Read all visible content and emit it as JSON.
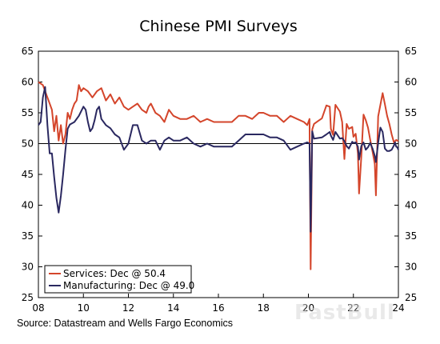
{
  "chart_data": {
    "type": "line",
    "title": "Chinese PMI Surveys",
    "xlabel": "",
    "ylabel": "",
    "xlim": [
      2008,
      2024
    ],
    "ylim": [
      25,
      65
    ],
    "x_ticks": [
      "08",
      "10",
      "12",
      "14",
      "16",
      "18",
      "20",
      "22",
      "24"
    ],
    "y_ticks": [
      25,
      30,
      35,
      40,
      45,
      50,
      55,
      60,
      65
    ],
    "reference_line": 50,
    "legend_position": "bottom-left",
    "grid": false,
    "series": [
      {
        "name": "Services: Dec @ 50.4",
        "color": "#d4452b",
        "points": [
          [
            2008.0,
            60.0
          ],
          [
            2008.2,
            59.5
          ],
          [
            2008.4,
            57.5
          ],
          [
            2008.6,
            55.5
          ],
          [
            2008.7,
            52.0
          ],
          [
            2008.8,
            54.5
          ],
          [
            2008.9,
            50.5
          ],
          [
            2009.0,
            53.0
          ],
          [
            2009.1,
            50.0
          ],
          [
            2009.2,
            51.5
          ],
          [
            2009.3,
            55.0
          ],
          [
            2009.4,
            54.0
          ],
          [
            2009.5,
            55.5
          ],
          [
            2009.6,
            56.5
          ],
          [
            2009.7,
            57.0
          ],
          [
            2009.8,
            59.5
          ],
          [
            2009.9,
            58.5
          ],
          [
            2010.0,
            59.0
          ],
          [
            2010.2,
            58.5
          ],
          [
            2010.4,
            57.5
          ],
          [
            2010.6,
            58.5
          ],
          [
            2010.8,
            59.0
          ],
          [
            2011.0,
            57.0
          ],
          [
            2011.2,
            58.0
          ],
          [
            2011.4,
            56.5
          ],
          [
            2011.6,
            57.5
          ],
          [
            2011.8,
            56.0
          ],
          [
            2012.0,
            55.5
          ],
          [
            2012.2,
            56.0
          ],
          [
            2012.4,
            56.5
          ],
          [
            2012.6,
            55.5
          ],
          [
            2012.8,
            55.0
          ],
          [
            2012.9,
            56.0
          ],
          [
            2013.0,
            56.5
          ],
          [
            2013.2,
            55.0
          ],
          [
            2013.4,
            54.5
          ],
          [
            2013.6,
            53.5
          ],
          [
            2013.8,
            55.5
          ],
          [
            2014.0,
            54.5
          ],
          [
            2014.3,
            54.0
          ],
          [
            2014.6,
            54.0
          ],
          [
            2014.9,
            54.5
          ],
          [
            2015.2,
            53.5
          ],
          [
            2015.5,
            54.0
          ],
          [
            2015.8,
            53.5
          ],
          [
            2016.0,
            53.5
          ],
          [
            2016.3,
            53.5
          ],
          [
            2016.6,
            53.5
          ],
          [
            2016.9,
            54.5
          ],
          [
            2017.2,
            54.5
          ],
          [
            2017.5,
            54.0
          ],
          [
            2017.8,
            55.0
          ],
          [
            2018.0,
            55.0
          ],
          [
            2018.3,
            54.5
          ],
          [
            2018.6,
            54.5
          ],
          [
            2018.9,
            53.5
          ],
          [
            2019.2,
            54.5
          ],
          [
            2019.5,
            54.0
          ],
          [
            2019.8,
            53.5
          ],
          [
            2019.95,
            53.0
          ],
          [
            2020.05,
            54.0
          ],
          [
            2020.1,
            29.6
          ],
          [
            2020.17,
            52.3
          ],
          [
            2020.25,
            53.2
          ],
          [
            2020.4,
            53.6
          ],
          [
            2020.6,
            54.1
          ],
          [
            2020.8,
            56.2
          ],
          [
            2020.95,
            56.0
          ],
          [
            2021.0,
            52.4
          ],
          [
            2021.1,
            51.4
          ],
          [
            2021.2,
            56.3
          ],
          [
            2021.4,
            55.2
          ],
          [
            2021.5,
            53.5
          ],
          [
            2021.6,
            47.5
          ],
          [
            2021.7,
            53.2
          ],
          [
            2021.8,
            52.4
          ],
          [
            2021.95,
            52.7
          ],
          [
            2022.0,
            51.1
          ],
          [
            2022.1,
            51.6
          ],
          [
            2022.2,
            48.4
          ],
          [
            2022.25,
            41.9
          ],
          [
            2022.35,
            47.8
          ],
          [
            2022.45,
            54.7
          ],
          [
            2022.55,
            53.8
          ],
          [
            2022.65,
            52.6
          ],
          [
            2022.75,
            50.6
          ],
          [
            2022.85,
            48.7
          ],
          [
            2022.95,
            46.7
          ],
          [
            2023.0,
            41.6
          ],
          [
            2023.1,
            54.4
          ],
          [
            2023.2,
            56.3
          ],
          [
            2023.3,
            58.2
          ],
          [
            2023.4,
            56.4
          ],
          [
            2023.5,
            54.5
          ],
          [
            2023.6,
            53.2
          ],
          [
            2023.7,
            51.5
          ],
          [
            2023.8,
            50.2
          ],
          [
            2023.9,
            50.6
          ],
          [
            2024.0,
            50.4
          ]
        ]
      },
      {
        "name": "Manufacturing: Dec @ 49.0",
        "color": "#2a2860",
        "points": [
          [
            2008.0,
            53.0
          ],
          [
            2008.1,
            53.5
          ],
          [
            2008.2,
            57.5
          ],
          [
            2008.3,
            59.2
          ],
          [
            2008.4,
            53.0
          ],
          [
            2008.5,
            48.4
          ],
          [
            2008.6,
            48.4
          ],
          [
            2008.7,
            44.6
          ],
          [
            2008.8,
            41.2
          ],
          [
            2008.9,
            38.8
          ],
          [
            2009.0,
            41.5
          ],
          [
            2009.1,
            45.0
          ],
          [
            2009.2,
            49.0
          ],
          [
            2009.3,
            52.4
          ],
          [
            2009.4,
            53.1
          ],
          [
            2009.6,
            53.5
          ],
          [
            2009.8,
            54.5
          ],
          [
            2010.0,
            56.0
          ],
          [
            2010.1,
            55.5
          ],
          [
            2010.2,
            53.5
          ],
          [
            2010.3,
            52.0
          ],
          [
            2010.4,
            52.5
          ],
          [
            2010.5,
            53.8
          ],
          [
            2010.6,
            55.5
          ],
          [
            2010.7,
            56.0
          ],
          [
            2010.8,
            54.0
          ],
          [
            2011.0,
            53.0
          ],
          [
            2011.2,
            52.5
          ],
          [
            2011.4,
            51.5
          ],
          [
            2011.6,
            51.0
          ],
          [
            2011.8,
            49.0
          ],
          [
            2012.0,
            50.0
          ],
          [
            2012.2,
            53.0
          ],
          [
            2012.4,
            53.0
          ],
          [
            2012.6,
            50.5
          ],
          [
            2012.8,
            50.0
          ],
          [
            2013.0,
            50.5
          ],
          [
            2013.2,
            50.5
          ],
          [
            2013.4,
            49.0
          ],
          [
            2013.6,
            50.5
          ],
          [
            2013.8,
            51.0
          ],
          [
            2014.0,
            50.5
          ],
          [
            2014.3,
            50.5
          ],
          [
            2014.6,
            51.0
          ],
          [
            2014.9,
            50.0
          ],
          [
            2015.2,
            49.5
          ],
          [
            2015.5,
            50.0
          ],
          [
            2015.8,
            49.5
          ],
          [
            2016.0,
            49.5
          ],
          [
            2016.3,
            49.5
          ],
          [
            2016.6,
            49.5
          ],
          [
            2016.9,
            50.5
          ],
          [
            2017.2,
            51.5
          ],
          [
            2017.5,
            51.5
          ],
          [
            2017.8,
            51.5
          ],
          [
            2018.0,
            51.5
          ],
          [
            2018.3,
            51.0
          ],
          [
            2018.6,
            51.0
          ],
          [
            2018.9,
            50.5
          ],
          [
            2019.2,
            49.0
          ],
          [
            2019.5,
            49.5
          ],
          [
            2019.8,
            50.0
          ],
          [
            2019.95,
            50.2
          ],
          [
            2020.05,
            50.0
          ],
          [
            2020.1,
            35.7
          ],
          [
            2020.17,
            52.0
          ],
          [
            2020.25,
            50.8
          ],
          [
            2020.4,
            50.9
          ],
          [
            2020.6,
            51.0
          ],
          [
            2020.8,
            51.5
          ],
          [
            2020.95,
            51.9
          ],
          [
            2021.0,
            51.3
          ],
          [
            2021.1,
            50.6
          ],
          [
            2021.2,
            51.9
          ],
          [
            2021.4,
            50.8
          ],
          [
            2021.5,
            50.9
          ],
          [
            2021.6,
            50.4
          ],
          [
            2021.7,
            49.6
          ],
          [
            2021.8,
            49.2
          ],
          [
            2021.95,
            50.3
          ],
          [
            2022.0,
            50.1
          ],
          [
            2022.1,
            50.2
          ],
          [
            2022.2,
            49.5
          ],
          [
            2022.25,
            47.4
          ],
          [
            2022.35,
            49.6
          ],
          [
            2022.45,
            50.2
          ],
          [
            2022.55,
            49.0
          ],
          [
            2022.65,
            49.4
          ],
          [
            2022.75,
            50.1
          ],
          [
            2022.85,
            49.2
          ],
          [
            2022.95,
            48.0
          ],
          [
            2023.0,
            47.0
          ],
          [
            2023.1,
            50.1
          ],
          [
            2023.2,
            52.6
          ],
          [
            2023.3,
            51.9
          ],
          [
            2023.4,
            49.2
          ],
          [
            2023.5,
            48.8
          ],
          [
            2023.6,
            48.8
          ],
          [
            2023.7,
            49.0
          ],
          [
            2023.8,
            49.7
          ],
          [
            2023.85,
            50.2
          ],
          [
            2023.9,
            49.5
          ],
          [
            2023.95,
            49.4
          ],
          [
            2024.0,
            49.0
          ]
        ]
      }
    ]
  },
  "source": "Source: Datastream and Wells Fargo Economics",
  "watermark": "FastBull"
}
